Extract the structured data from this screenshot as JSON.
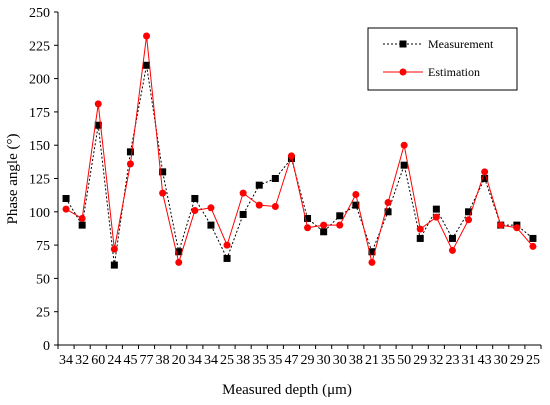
{
  "chart_data": {
    "type": "line",
    "xlabel": "Measured depth (μm)",
    "ylabel": "Phase angle (°)",
    "ylim": [
      0,
      250
    ],
    "yticks": [
      0,
      25,
      50,
      75,
      100,
      125,
      150,
      175,
      200,
      225,
      250
    ],
    "categories": [
      "34",
      "32",
      "60",
      "24",
      "45",
      "77",
      "38",
      "20",
      "34",
      "34",
      "25",
      "38",
      "35",
      "35",
      "47",
      "29",
      "30",
      "30",
      "38",
      "21",
      "35",
      "50",
      "29",
      "32",
      "23",
      "31",
      "43",
      "30",
      "29",
      "25"
    ],
    "series": [
      {
        "name": "Measurement",
        "color": "#000000",
        "line_style": "dotted",
        "marker": "square",
        "values": [
          110,
          90,
          165,
          60,
          145,
          210,
          130,
          70,
          110,
          90,
          65,
          98,
          120,
          125,
          140,
          95,
          85,
          97,
          105,
          70,
          100,
          135,
          80,
          102,
          80,
          100,
          125,
          90,
          90,
          80
        ]
      },
      {
        "name": "Estimation",
        "color": "#ff0000",
        "line_style": "solid",
        "marker": "circle",
        "values": [
          102,
          95,
          181,
          72,
          136,
          232,
          114,
          62,
          101,
          103,
          75,
          114,
          105,
          104,
          142,
          88,
          90,
          90,
          113,
          62,
          107,
          150,
          87,
          96,
          71,
          94,
          130,
          90,
          88,
          74
        ]
      }
    ],
    "legend": {
      "position": "top-right",
      "entries": [
        "Measurement",
        "Estimation"
      ]
    },
    "grid": false
  }
}
